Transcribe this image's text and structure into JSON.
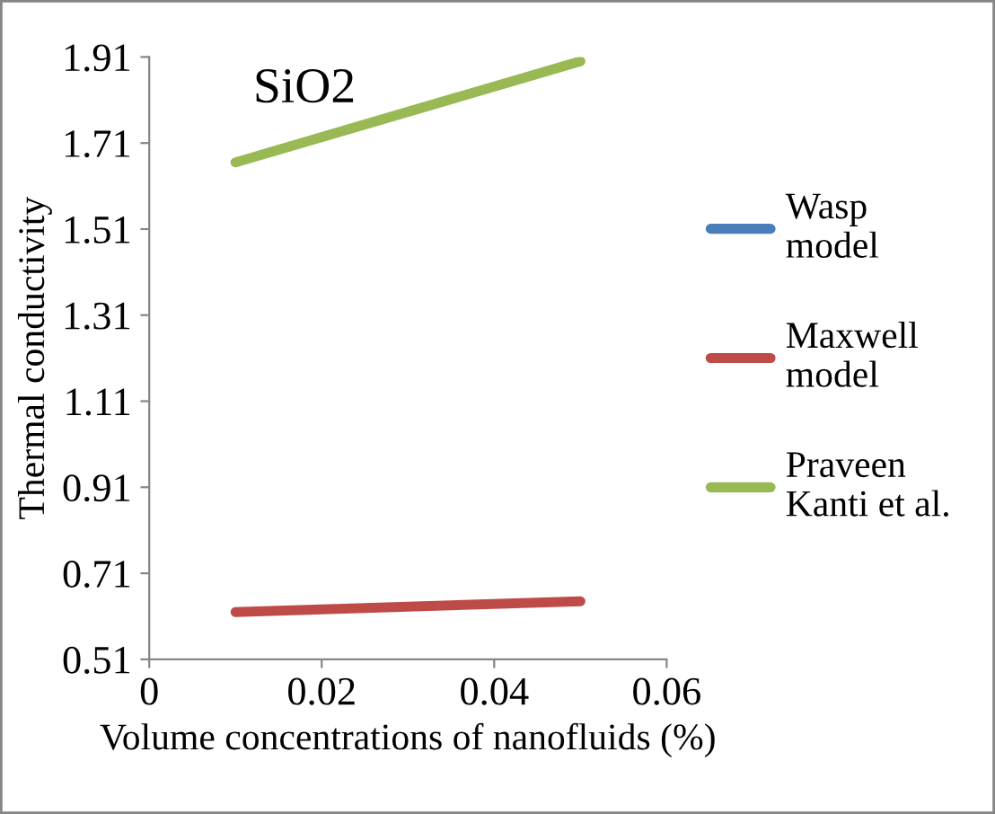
{
  "chart_data": {
    "type": "line",
    "title": "SiO2",
    "xlabel": "Volume concentrations of nanofluids (%)",
    "ylabel": "Thermal conductivity",
    "x": [
      0.01,
      0.05
    ],
    "series": [
      {
        "name": "Wasp model",
        "color": "#4a7ebb",
        "values": [
          null,
          null
        ]
      },
      {
        "name": "Maxwell model",
        "color": "#be4b48",
        "values": [
          0.62,
          0.645
        ]
      },
      {
        "name": "Praveen Kanti et al.",
        "color": "#98b954",
        "values": [
          1.665,
          1.9
        ]
      }
    ],
    "xlim": [
      0,
      0.06
    ],
    "xticks": [
      0,
      0.02,
      0.04,
      0.06
    ],
    "ylim": [
      0.51,
      1.91
    ],
    "yticks": [
      0.51,
      0.71,
      0.91,
      1.11,
      1.31,
      1.51,
      1.71,
      1.91
    ],
    "grid": false,
    "legend": "right",
    "marker": "none",
    "line_style": "solid"
  }
}
